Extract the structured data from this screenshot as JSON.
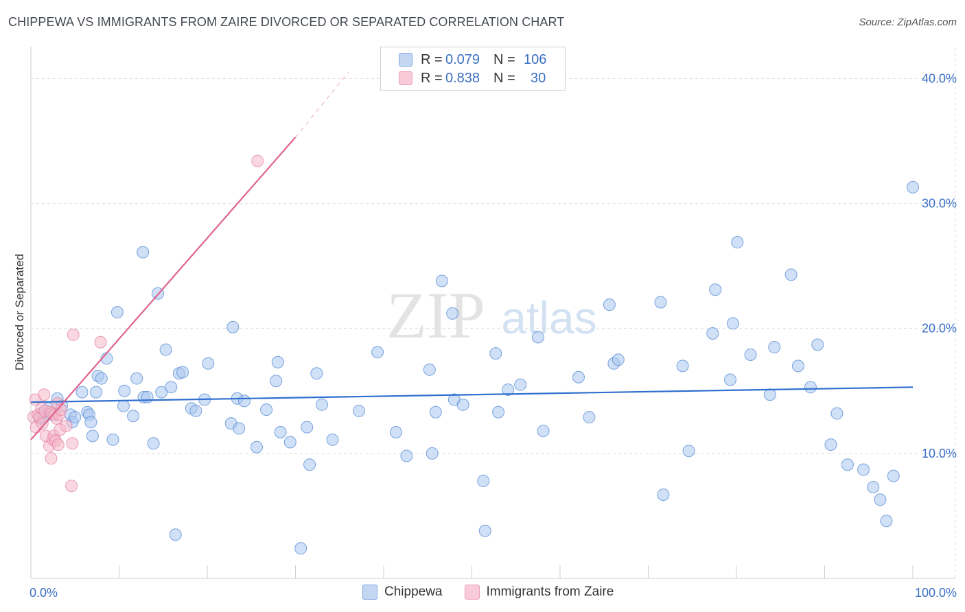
{
  "header": {
    "title": "CHIPPEWA VS IMMIGRANTS FROM ZAIRE DIVORCED OR SEPARATED CORRELATION CHART",
    "source": "Source: ZipAtlas.com"
  },
  "watermark": {
    "zip": "ZIP",
    "atlas": "atlas"
  },
  "legend": {
    "rows": [
      {
        "r_label": "R =",
        "r_value": "0.079",
        "n_label": "N =",
        "n_value": "106",
        "color": "#a9c6ef"
      },
      {
        "r_label": "R =",
        "r_value": "0.838",
        "n_label": "N =",
        "n_value": "30",
        "color": "#f5b8cb"
      }
    ]
  },
  "colors": {
    "blue_fill": "#a9c6ef",
    "blue_stroke": "#5b8fd6",
    "blue_line": "#2f6fcf",
    "pink_fill": "#f5b8cb",
    "pink_stroke": "#e487a6",
    "pink_line": "#e0628e",
    "tick": "#3a6fc4",
    "grid": "#dcdcdc"
  },
  "chart_data": {
    "type": "scatter",
    "title": "CHIPPEWA VS IMMIGRANTS FROM ZAIRE DIVORCED OR SEPARATED CORRELATION CHART",
    "xlabel": "",
    "ylabel": "Divorced or Separated",
    "xlim": [
      0,
      100
    ],
    "ylim": [
      0,
      42
    ],
    "x_tick_labels": [
      {
        "value": 0,
        "label": "0.0%"
      },
      {
        "value": 100,
        "label": "100.0%"
      }
    ],
    "y_tick_labels": [
      {
        "value": 10,
        "label": "10.0%"
      },
      {
        "value": 20,
        "label": "20.0%"
      },
      {
        "value": 30,
        "label": "30.0%"
      },
      {
        "value": 40,
        "label": "40.0%"
      }
    ],
    "series": [
      {
        "name": "Chippewa",
        "color": "#a9c6ef",
        "trend": {
          "x": [
            0,
            100
          ],
          "y": [
            14.1,
            15.3
          ]
        },
        "points": [
          [
            1,
            12.8
          ],
          [
            1.2,
            13.2
          ],
          [
            1.5,
            12.9
          ],
          [
            2,
            13.6
          ],
          [
            2.5,
            13.1
          ],
          [
            3,
            14.4
          ],
          [
            3.5,
            13.8
          ],
          [
            4.5,
            13.1
          ],
          [
            4.7,
            12.5
          ],
          [
            5,
            12.9
          ],
          [
            5.8,
            14.9
          ],
          [
            6.4,
            13.3
          ],
          [
            6.6,
            13.1
          ],
          [
            6.8,
            12.5
          ],
          [
            7,
            11.4
          ],
          [
            7.4,
            14.9
          ],
          [
            7.6,
            16.2
          ],
          [
            8,
            16
          ],
          [
            8.6,
            17.6
          ],
          [
            9.3,
            11.1
          ],
          [
            9.8,
            21.3
          ],
          [
            10.5,
            13.8
          ],
          [
            10.6,
            15
          ],
          [
            11.6,
            13
          ],
          [
            12,
            16
          ],
          [
            12.7,
            26.1
          ],
          [
            12.8,
            14.5
          ],
          [
            13.2,
            14.5
          ],
          [
            13.9,
            10.8
          ],
          [
            14.4,
            22.8
          ],
          [
            14.8,
            14.9
          ],
          [
            15.3,
            18.3
          ],
          [
            15.9,
            15.3
          ],
          [
            16.4,
            3.5
          ],
          [
            16.8,
            16.4
          ],
          [
            17.2,
            16.5
          ],
          [
            18.2,
            13.6
          ],
          [
            18.7,
            13.4
          ],
          [
            19.7,
            14.3
          ],
          [
            20.1,
            17.2
          ],
          [
            22.7,
            12.4
          ],
          [
            22.9,
            20.1
          ],
          [
            23.4,
            14.4
          ],
          [
            23.6,
            12
          ],
          [
            24.2,
            14.2
          ],
          [
            25.6,
            10.5
          ],
          [
            26.7,
            13.5
          ],
          [
            27.8,
            15.8
          ],
          [
            28,
            17.3
          ],
          [
            28.3,
            11.7
          ],
          [
            29.4,
            10.9
          ],
          [
            30.6,
            2.4
          ],
          [
            31.3,
            12.1
          ],
          [
            31.6,
            9.1
          ],
          [
            32.4,
            16.4
          ],
          [
            33,
            13.9
          ],
          [
            34.2,
            11.1
          ],
          [
            37.2,
            13.4
          ],
          [
            39.3,
            18.1
          ],
          [
            41.4,
            11.7
          ],
          [
            42.6,
            9.8
          ],
          [
            45.2,
            16.7
          ],
          [
            45.5,
            10
          ],
          [
            45.9,
            13.3
          ],
          [
            46.6,
            23.8
          ],
          [
            47.8,
            21.2
          ],
          [
            48,
            14.3
          ],
          [
            49,
            13.9
          ],
          [
            51.3,
            7.8
          ],
          [
            51.5,
            3.8
          ],
          [
            52.7,
            18
          ],
          [
            53,
            13.3
          ],
          [
            54.1,
            15.1
          ],
          [
            55.5,
            15.5
          ],
          [
            57.5,
            19.3
          ],
          [
            58.1,
            11.8
          ],
          [
            62.1,
            16.1
          ],
          [
            63.3,
            12.9
          ],
          [
            65.6,
            21.9
          ],
          [
            66.1,
            17.2
          ],
          [
            66.6,
            17.5
          ],
          [
            71.4,
            22.1
          ],
          [
            71.7,
            6.7
          ],
          [
            73.9,
            17
          ],
          [
            74.6,
            10.2
          ],
          [
            77.3,
            19.6
          ],
          [
            77.6,
            23.1
          ],
          [
            79.3,
            15.9
          ],
          [
            79.6,
            20.4
          ],
          [
            80.1,
            26.9
          ],
          [
            81.6,
            17.9
          ],
          [
            83.8,
            14.7
          ],
          [
            84.3,
            18.5
          ],
          [
            86.2,
            24.3
          ],
          [
            87,
            17
          ],
          [
            88.4,
            15.3
          ],
          [
            89.2,
            18.7
          ],
          [
            90.7,
            10.7
          ],
          [
            91.4,
            13.2
          ],
          [
            92.6,
            9.1
          ],
          [
            94.4,
            8.7
          ],
          [
            95.5,
            7.3
          ],
          [
            96.3,
            6.3
          ],
          [
            97,
            4.6
          ],
          [
            97.8,
            8.2
          ],
          [
            100,
            31.3
          ]
        ]
      },
      {
        "name": "Immigrants from Zaire",
        "color": "#f5b8cb",
        "trend": {
          "x": [
            0,
            30
          ],
          "y": [
            11.1,
            35.3
          ]
        },
        "trend_extension": {
          "x": [
            30,
            36
          ],
          "y": [
            35.3,
            40.5
          ]
        },
        "points": [
          [
            0.3,
            12.9
          ],
          [
            0.5,
            14.3
          ],
          [
            0.6,
            12.1
          ],
          [
            0.8,
            13.1
          ],
          [
            1,
            12.9
          ],
          [
            1.2,
            13.6
          ],
          [
            1.3,
            12.4
          ],
          [
            1.5,
            14.7
          ],
          [
            1.6,
            13.4
          ],
          [
            1.7,
            11.4
          ],
          [
            2.1,
            10.6
          ],
          [
            2.2,
            13.3
          ],
          [
            2.3,
            9.6
          ],
          [
            2.4,
            13.2
          ],
          [
            2.5,
            11.1
          ],
          [
            2.6,
            11.4
          ],
          [
            2.7,
            13.1
          ],
          [
            2.8,
            11
          ],
          [
            2.9,
            12.8
          ],
          [
            3,
            14
          ],
          [
            3.1,
            10.7
          ],
          [
            3.2,
            13.1
          ],
          [
            3.3,
            11.9
          ],
          [
            3.4,
            13.5
          ],
          [
            4,
            12.2
          ],
          [
            4.6,
            7.4
          ],
          [
            4.7,
            10.8
          ],
          [
            4.8,
            19.5
          ],
          [
            7.9,
            18.9
          ],
          [
            25.7,
            33.4
          ]
        ]
      }
    ]
  }
}
